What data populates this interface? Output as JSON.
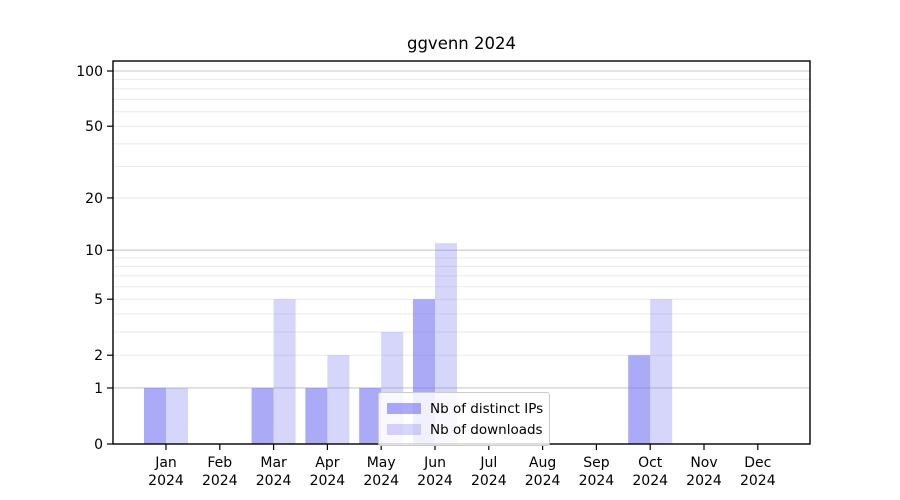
{
  "chart_data": {
    "type": "bar",
    "title": "ggvenn 2024",
    "categories": [
      "Jan",
      "Feb",
      "Mar",
      "Apr",
      "May",
      "Jun",
      "Jul",
      "Aug",
      "Sep",
      "Oct",
      "Nov",
      "Dec"
    ],
    "category_year": "2024",
    "series": [
      {
        "name": "Nb of distinct IPs",
        "color": "rgba(116,116,242,0.61)",
        "values": [
          1,
          0,
          1,
          1,
          1,
          5,
          0,
          0,
          0,
          2,
          0,
          0
        ]
      },
      {
        "name": "Nb of downloads",
        "color": "rgba(140,140,240,0.36)",
        "values": [
          1,
          0,
          5,
          2,
          3,
          11,
          0,
          0,
          0,
          5,
          0,
          0
        ]
      }
    ],
    "xlabel": "",
    "ylabel": "",
    "y_axis": {
      "scale": "log1p",
      "tick_values": [
        0,
        1,
        2,
        5,
        10,
        20,
        50,
        100
      ],
      "tick_labels": [
        "0",
        "1",
        "2",
        "5",
        "10",
        "20",
        "50",
        "100"
      ],
      "major_gridlines": [
        1,
        10,
        100
      ],
      "minor_gridlines": [
        2,
        3,
        4,
        5,
        6,
        7,
        8,
        9,
        20,
        30,
        40,
        50,
        60,
        70,
        80,
        90
      ],
      "range_top": 113
    },
    "grid": "on",
    "legend_position": "lower-center-inside",
    "colors": {
      "major_grid": "#c9c9c9",
      "minor_grid": "#eaeaea",
      "spine": "#000000",
      "text": "#000000",
      "background": "#ffffff"
    }
  }
}
